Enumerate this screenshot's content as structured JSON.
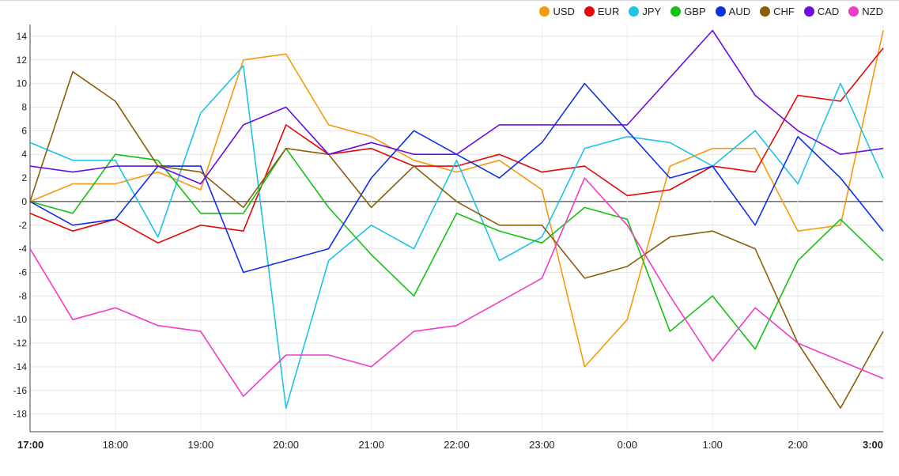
{
  "chart_data": {
    "type": "line",
    "title": "",
    "xlabel": "",
    "ylabel": "",
    "ylim": [
      -19.5,
      15
    ],
    "yticks": [
      14,
      12,
      10,
      8,
      6,
      4,
      2,
      0,
      -2,
      -4,
      -6,
      -8,
      -10,
      -12,
      -14,
      -16,
      -18
    ],
    "xlim": [
      0,
      10
    ],
    "xticks": [
      {
        "pos": 0,
        "label": "17:00",
        "bold": true
      },
      {
        "pos": 1,
        "label": "18:00",
        "bold": false
      },
      {
        "pos": 2,
        "label": "19:00",
        "bold": false
      },
      {
        "pos": 3,
        "label": "20:00",
        "bold": false
      },
      {
        "pos": 4,
        "label": "21:00",
        "bold": false
      },
      {
        "pos": 5,
        "label": "22:00",
        "bold": false
      },
      {
        "pos": 6,
        "label": "23:00",
        "bold": false
      },
      {
        "pos": 7,
        "label": "0:00",
        "bold": false
      },
      {
        "pos": 8,
        "label": "1:00",
        "bold": false
      },
      {
        "pos": 9,
        "label": "2:00",
        "bold": false
      },
      {
        "pos": 10,
        "label": "3:00",
        "bold": true
      }
    ],
    "grid": true,
    "legend_position": "top-right",
    "series": [
      {
        "name": "USD",
        "color": "#f59a0c",
        "x": [
          0,
          0.5,
          1,
          1.5,
          2,
          2.5,
          3,
          3.5,
          4,
          4.5,
          5,
          5.5,
          6,
          6.5,
          7,
          7.5,
          8,
          8.5,
          9,
          9.5,
          10
        ],
        "y": [
          0,
          1.5,
          1.5,
          2.5,
          1.0,
          12,
          12.5,
          6.5,
          5.5,
          3.5,
          2.5,
          3.5,
          1.0,
          -14,
          -10,
          3,
          4.5,
          4.5,
          -2.5,
          -2,
          14.5
        ]
      },
      {
        "name": "EUR",
        "color": "#e40808",
        "x": [
          0,
          0.5,
          1,
          1.5,
          2,
          2.5,
          3,
          3.5,
          4,
          4.5,
          5,
          5.5,
          6,
          6.5,
          7,
          7.5,
          8,
          8.5,
          9,
          9.5,
          10
        ],
        "y": [
          -1,
          -2.5,
          -1.5,
          -3.5,
          -2,
          -2.5,
          6.5,
          4,
          4.5,
          3,
          3,
          4,
          2.5,
          3,
          0.5,
          1,
          3,
          2.5,
          9,
          8.5,
          13
        ]
      },
      {
        "name": "JPY",
        "color": "#1ec3e8",
        "x": [
          0,
          0.5,
          1,
          1.5,
          2,
          2.5,
          3,
          3.5,
          4,
          4.5,
          5,
          5.5,
          6,
          6.5,
          7,
          7.5,
          8,
          8.5,
          9,
          9.5,
          10
        ],
        "y": [
          5,
          3.5,
          3.5,
          -3,
          7.5,
          11.5,
          -17.5,
          -5,
          -2,
          -4,
          3.5,
          -5,
          -3,
          4.5,
          5.5,
          5,
          3,
          6,
          1.5,
          10,
          2
        ]
      },
      {
        "name": "GBP",
        "color": "#14c214",
        "x": [
          0,
          0.5,
          1,
          1.5,
          2,
          2.5,
          3,
          3.5,
          4,
          4.5,
          5,
          5.5,
          6,
          6.5,
          7,
          7.5,
          8,
          8.5,
          9,
          9.5,
          10
        ],
        "y": [
          0,
          -1,
          4,
          3.5,
          -1,
          -1,
          4.5,
          -0.5,
          -4.5,
          -8,
          -1,
          -2.5,
          -3.5,
          -0.5,
          -1.5,
          -11,
          -8,
          -12.5,
          -5,
          -1.5,
          -5
        ]
      },
      {
        "name": "AUD",
        "color": "#0e2fe6",
        "x": [
          0,
          0.5,
          1,
          1.5,
          2,
          2.5,
          3,
          3.5,
          4,
          4.5,
          5,
          5.5,
          6,
          6.5,
          7,
          7.5,
          8,
          8.5,
          9,
          9.5,
          10
        ],
        "y": [
          0,
          -2,
          -1.5,
          3,
          3,
          -6,
          -5,
          -4,
          2,
          6,
          4,
          2,
          5,
          10,
          6,
          2,
          3,
          -2,
          5.5,
          2,
          -2.5
        ]
      },
      {
        "name": "CHF",
        "color": "#8a5e0a",
        "x": [
          0,
          0.5,
          1,
          1.5,
          2,
          2.5,
          3,
          3.5,
          4,
          4.5,
          5,
          5.5,
          6,
          6.5,
          7,
          7.5,
          8,
          8.5,
          9,
          9.5,
          10
        ],
        "y": [
          0,
          11,
          8.5,
          3,
          2.5,
          -0.5,
          4.5,
          4,
          -0.5,
          3,
          0,
          -2,
          -2,
          -6.5,
          -5.5,
          -3,
          -2.5,
          -4,
          -12,
          -17.5,
          -11
        ]
      },
      {
        "name": "CAD",
        "color": "#6a10de",
        "x": [
          0,
          0.5,
          1,
          1.5,
          2,
          2.5,
          3,
          3.5,
          4,
          4.5,
          5,
          5.5,
          6,
          6.5,
          7,
          7.5,
          8,
          8.5,
          9,
          9.5,
          10
        ],
        "y": [
          3,
          2.5,
          3,
          3,
          1.5,
          6.5,
          8,
          4,
          5,
          4,
          4,
          6.5,
          6.5,
          6.5,
          6.5,
          10.5,
          14.5,
          9,
          6,
          4,
          4.5
        ]
      },
      {
        "name": "NZD",
        "color": "#f03cc8",
        "x": [
          0,
          0.5,
          1,
          1.5,
          2,
          2.5,
          3,
          3.5,
          4,
          4.5,
          5,
          5.5,
          6,
          6.5,
          7,
          7.5,
          8,
          8.5,
          9,
          9.5,
          10
        ],
        "y": [
          -4,
          -10,
          -9,
          -10.5,
          -11,
          -16.5,
          -13,
          -13,
          -14,
          -11,
          -10.5,
          -8.5,
          -6.5,
          2,
          -2,
          -8,
          -13.5,
          -9,
          -12,
          -13.5,
          -15
        ]
      }
    ]
  }
}
